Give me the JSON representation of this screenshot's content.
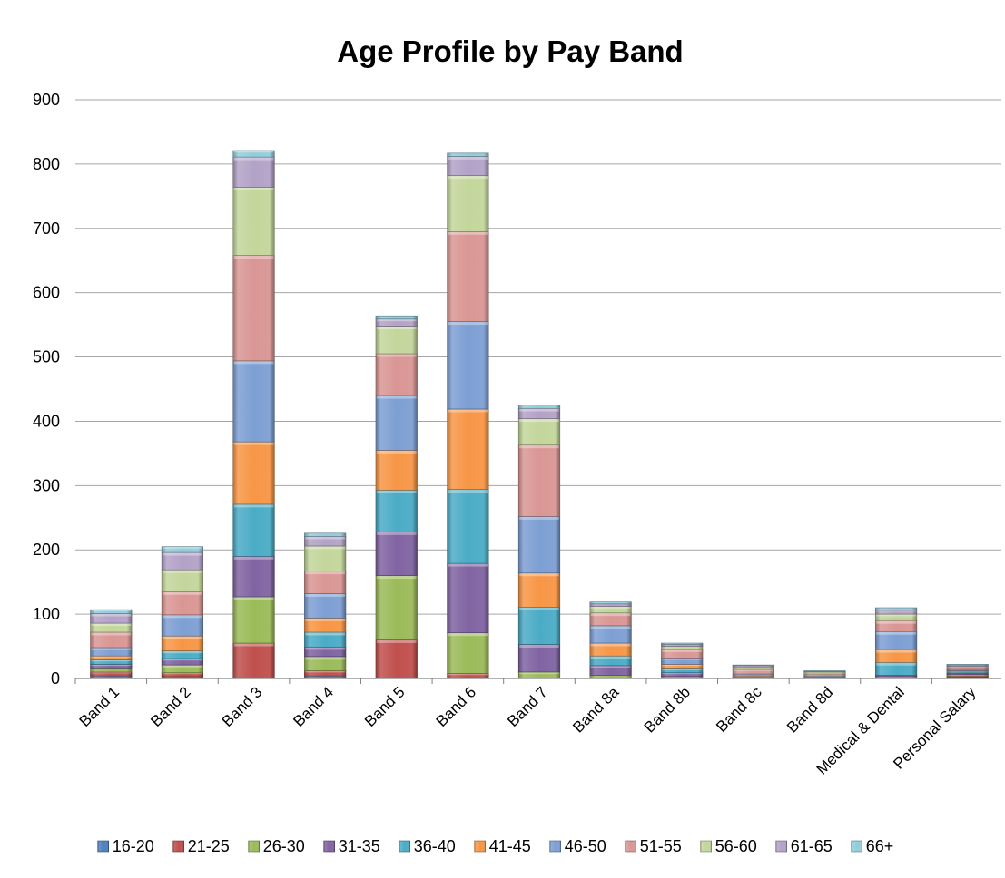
{
  "chart_data": {
    "type": "bar",
    "stacked": true,
    "title": "Age Profile by Pay Band",
    "xlabel": "",
    "ylabel": "",
    "ylim": [
      0,
      900
    ],
    "yticks": [
      0,
      100,
      200,
      300,
      400,
      500,
      600,
      700,
      800,
      900
    ],
    "grid": true,
    "legend_position": "bottom",
    "categories": [
      "Band 1",
      "Band 2",
      "Band 3",
      "Band 4",
      "Band 5",
      "Band 6",
      "Band 7",
      "Band 8a",
      "Band 8b",
      "Band 8c",
      "Band 8d",
      "Medical & Dental",
      "Personal Salary"
    ],
    "series": [
      {
        "name": "16-20",
        "color": "#4f81bd",
        "values": [
          4,
          3,
          0,
          4,
          0,
          0,
          0,
          0,
          0,
          0,
          0,
          0,
          2
        ]
      },
      {
        "name": "21-25",
        "color": "#c0504d",
        "values": [
          6,
          6,
          55,
          8,
          60,
          8,
          0,
          0,
          0,
          0,
          0,
          0,
          2
        ]
      },
      {
        "name": "26-30",
        "color": "#9bbb59",
        "values": [
          5,
          12,
          72,
          22,
          100,
          63,
          10,
          5,
          3,
          0,
          0,
          3,
          2
        ]
      },
      {
        "name": "31-35",
        "color": "#8064a2",
        "values": [
          7,
          10,
          63,
          15,
          68,
          108,
          43,
          15,
          6,
          0,
          0,
          2,
          2
        ]
      },
      {
        "name": "36-40",
        "color": "#4bacc6",
        "values": [
          7,
          12,
          81,
          23,
          65,
          115,
          58,
          15,
          6,
          2,
          0,
          20,
          2
        ]
      },
      {
        "name": "41-45",
        "color": "#f79646",
        "values": [
          6,
          23,
          97,
          22,
          62,
          125,
          53,
          20,
          7,
          2,
          2,
          20,
          2
        ]
      },
      {
        "name": "46-50",
        "color": "#7d9fd3",
        "values": [
          13,
          33,
          126,
          38,
          85,
          136,
          88,
          27,
          10,
          3,
          2,
          28,
          2
        ]
      },
      {
        "name": "51-55",
        "color": "#d99694",
        "values": [
          24,
          36,
          164,
          35,
          65,
          140,
          111,
          20,
          13,
          7,
          3,
          17,
          3
        ]
      },
      {
        "name": "56-60",
        "color": "#c3d69b",
        "values": [
          14,
          34,
          106,
          39,
          43,
          87,
          41,
          10,
          5,
          4,
          3,
          10,
          2
        ]
      },
      {
        "name": "61-65",
        "color": "#b3a2c7",
        "values": [
          15,
          27,
          47,
          15,
          11,
          30,
          16,
          4,
          3,
          2,
          1,
          6,
          2
        ]
      },
      {
        "name": "66+",
        "color": "#92cddc",
        "values": [
          6,
          9,
          10,
          5,
          5,
          5,
          5,
          3,
          2,
          1,
          1,
          4,
          1
        ]
      }
    ]
  }
}
